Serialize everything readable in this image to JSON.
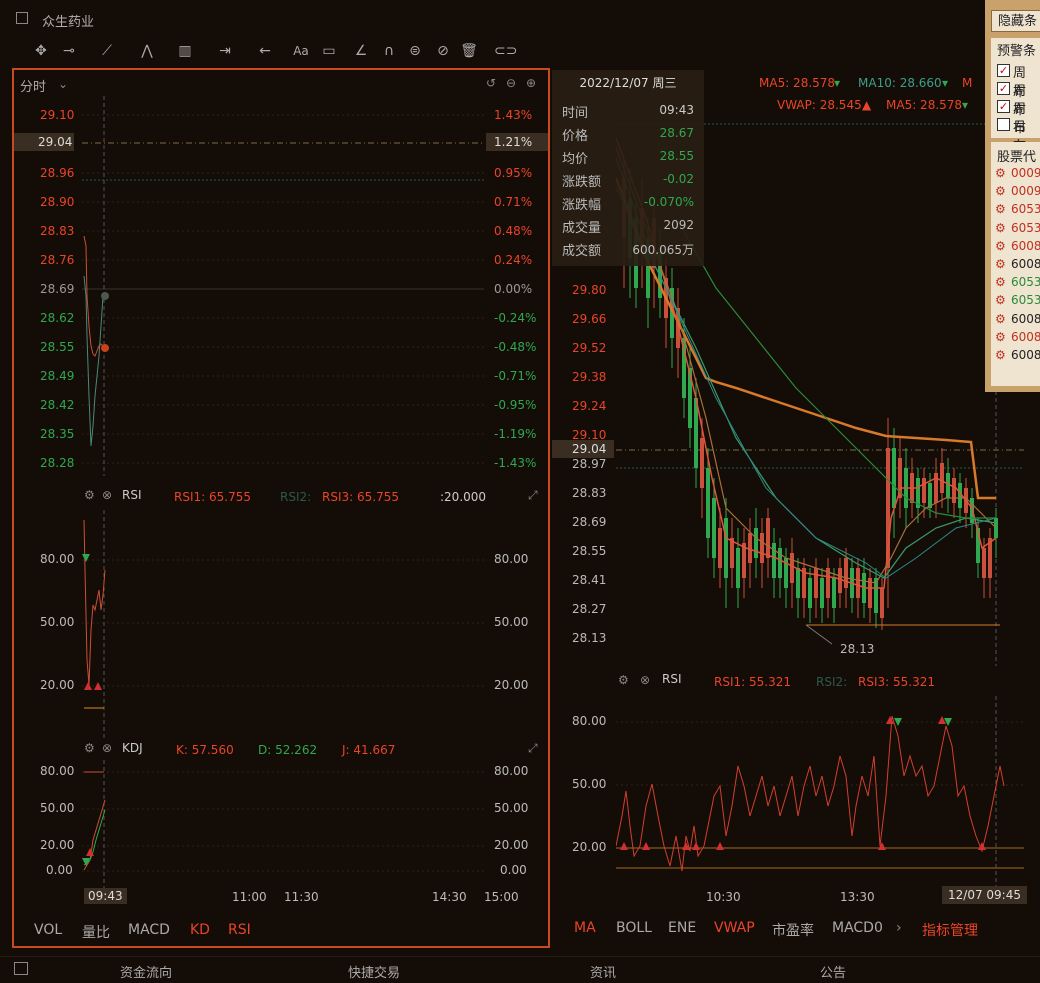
{
  "window": {
    "title": "众生药业"
  },
  "left": {
    "mode_label": "分时",
    "price_ticks": [
      "29.10",
      "29.04",
      "28.96",
      "28.90",
      "28.83",
      "28.76",
      "28.69",
      "28.62",
      "28.55",
      "28.49",
      "28.42",
      "28.35",
      "28.28"
    ],
    "pct_ticks": [
      "1.43%",
      "1.21%",
      "0.95%",
      "0.71%",
      "0.48%",
      "0.24%",
      "0.00%",
      "-0.24%",
      "-0.48%",
      "-0.71%",
      "-0.95%",
      "-1.19%",
      "-1.43%"
    ],
    "rsi": {
      "name": "RSI",
      "rsi1": "RSI1: 65.755",
      "rsi2": "RSI2:",
      "rsi3": "RSI3: 65.755",
      "extra": ":20.000",
      "ticks": [
        "80.00",
        "50.00",
        "20.00"
      ]
    },
    "kdj": {
      "name": "KDJ",
      "k": "K: 57.560",
      "d": "D: 52.262",
      "j": "J: 41.667",
      "ticks": [
        "80.00",
        "50.00",
        "20.00",
        "0.00"
      ]
    },
    "time_labels": {
      "current": "09:43",
      "t1": "11:00",
      "t2": "11:30",
      "t3": "14:30",
      "t4": "15:00"
    },
    "tabs": [
      "VOL",
      "量比",
      "MACD",
      "KD",
      "RSI"
    ]
  },
  "tooltip": {
    "date": "2022/12/07 周三",
    "rows": [
      {
        "label": "时间",
        "value": "09:43"
      },
      {
        "label": "价格",
        "value": "28.67"
      },
      {
        "label": "均价",
        "value": "28.55"
      },
      {
        "label": "涨跌额",
        "value": "-0.02"
      },
      {
        "label": "涨跌幅",
        "value": "-0.070%"
      },
      {
        "label": "成交量",
        "value": "2092"
      },
      {
        "label": "成交额",
        "value": "600.065万"
      }
    ]
  },
  "right": {
    "ma_line1": {
      "ma5": "MA5: 28.578",
      "ma10": "MA10: 28.660",
      "m": "M"
    },
    "ma_line2": {
      "vwap": "VWAP: 28.545",
      "ma5": "MA5: 28.578"
    },
    "price_ticks": [
      "29.80",
      "29.66",
      "29.52",
      "29.38",
      "29.24",
      "29.10",
      "29.04",
      "28.97",
      "28.83",
      "28.69",
      "28.55",
      "28.41",
      "28.27",
      "28.13"
    ],
    "low_label": "28.13",
    "rsi": {
      "name": "RSI",
      "rsi1": "RSI1: 55.321",
      "rsi2": "RSI2:",
      "rsi3": "RSI3: 55.321",
      "ticks": [
        "80.00",
        "50.00",
        "20.00"
      ]
    },
    "time_labels": {
      "t1": "10:30",
      "t2": "13:30",
      "current": "12/07 09:45"
    },
    "tabs": [
      "MA",
      "BOLL",
      "ENE",
      "VWAP",
      "市盈率",
      "MACD0"
    ],
    "indicator_mgr": "指标管理"
  },
  "popup": {
    "hide_btn": "隐藏条",
    "section1": "预警条",
    "checks": [
      {
        "label": "周布",
        "checked": true
      },
      {
        "label": "周布",
        "checked": true
      },
      {
        "label": "周布",
        "checked": true
      },
      {
        "label": "日布",
        "checked": false
      }
    ],
    "section2": "股票代",
    "codes": [
      "0009",
      "0009",
      "6053",
      "6053",
      "6008",
      "6008",
      "6053",
      "6053",
      "6008",
      "6008",
      "6008"
    ]
  },
  "statusbar": [
    "资金流向",
    "快捷交易",
    "资讯",
    "公告"
  ]
}
